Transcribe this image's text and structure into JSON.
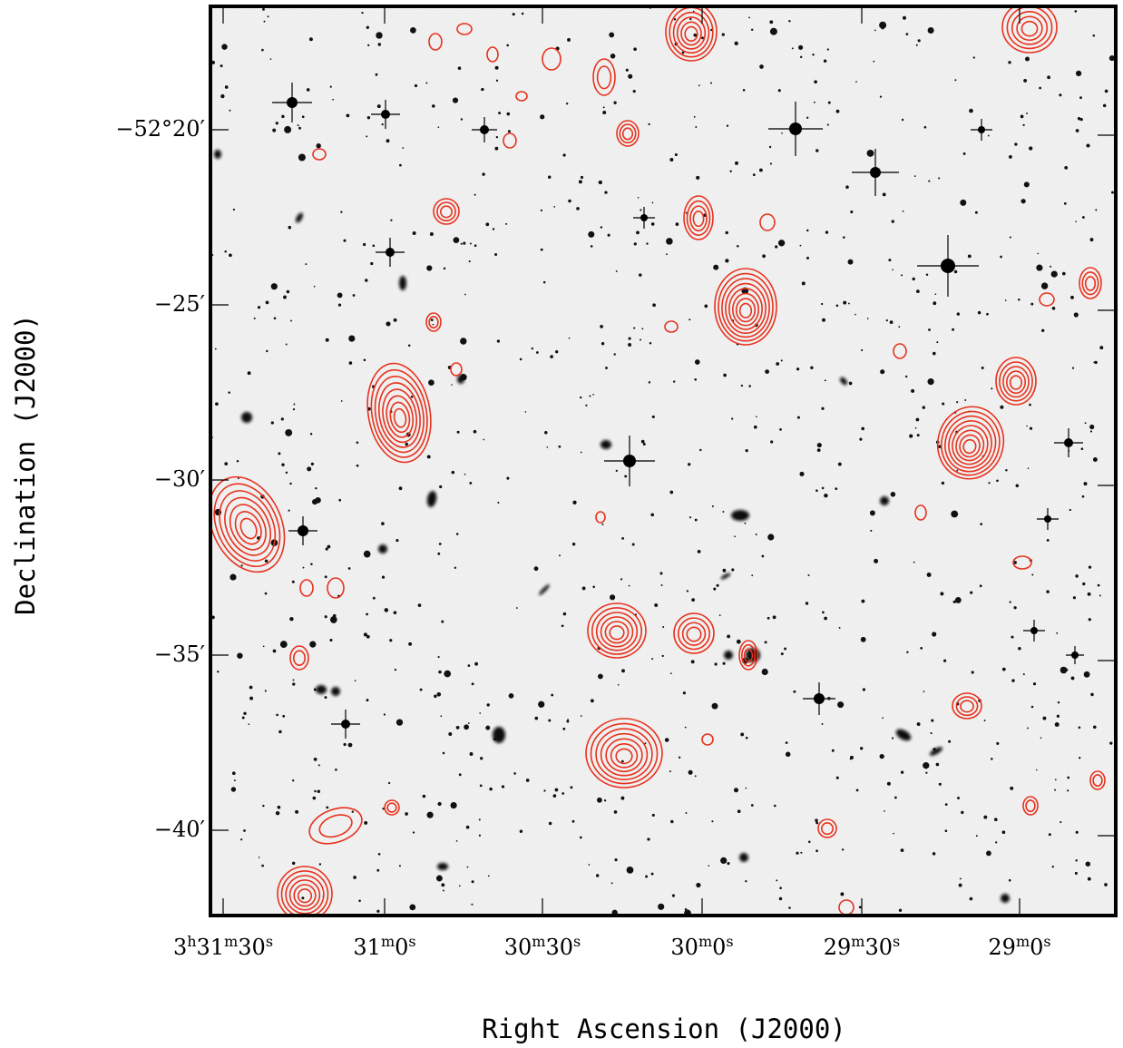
{
  "figure": {
    "xlabel": "Right Ascension (J2000)",
    "ylabel": "Declination (J2000)",
    "contour_color": "#e8321e",
    "background_color": "#f2f2f2",
    "ra_ticks": [
      {
        "h": "3",
        "hs": "h",
        "m": "31",
        "ms": "m",
        "s": "30",
        "ss": "s"
      },
      {
        "h": "",
        "hs": "",
        "m": "31",
        "ms": "m",
        "s": "0",
        "ss": "s"
      },
      {
        "h": "",
        "hs": "",
        "m": "30",
        "ms": "m",
        "s": "30",
        "ss": "s"
      },
      {
        "h": "",
        "hs": "",
        "m": "30",
        "ms": "m",
        "s": "0",
        "ss": "s"
      },
      {
        "h": "",
        "hs": "",
        "m": "29",
        "ms": "m",
        "s": "30",
        "ss": "s"
      },
      {
        "h": "",
        "hs": "",
        "m": "29",
        "ms": "m",
        "s": "0",
        "ss": "s"
      }
    ],
    "dec_ticks": [
      "−52°20′",
      "−25′",
      "−30′",
      "−35′",
      "−40′"
    ]
  }
}
